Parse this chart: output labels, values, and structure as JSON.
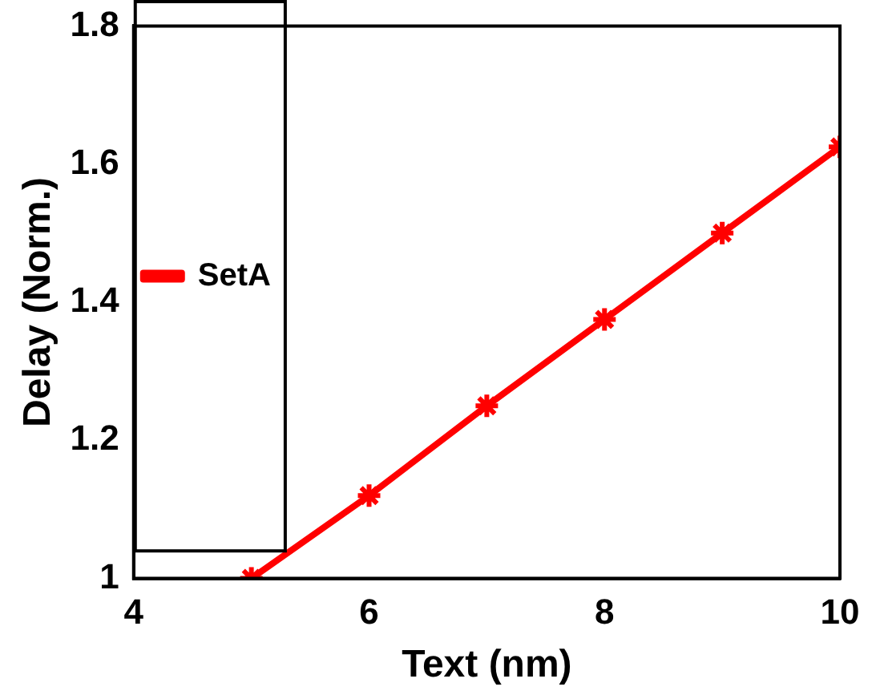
{
  "chart_data": {
    "type": "line",
    "xlabel": "Text (nm)",
    "ylabel": "Delay (Norm.)",
    "x": [
      5,
      6,
      7,
      8,
      9,
      10
    ],
    "series": [
      {
        "name": "SetA",
        "color": "#ff0000",
        "values": [
          1,
          1.12,
          1.25,
          1.375,
          1.5,
          1.625
        ]
      }
    ],
    "xlim": [
      4,
      10
    ],
    "xticks": [
      4,
      6,
      8,
      10
    ],
    "ylim": [
      1,
      1.8
    ],
    "yticks": [
      1,
      1.2,
      1.4,
      1.6,
      1.8
    ],
    "legend": "top",
    "marker": "cross",
    "line_style": "solid",
    "grid": false
  }
}
